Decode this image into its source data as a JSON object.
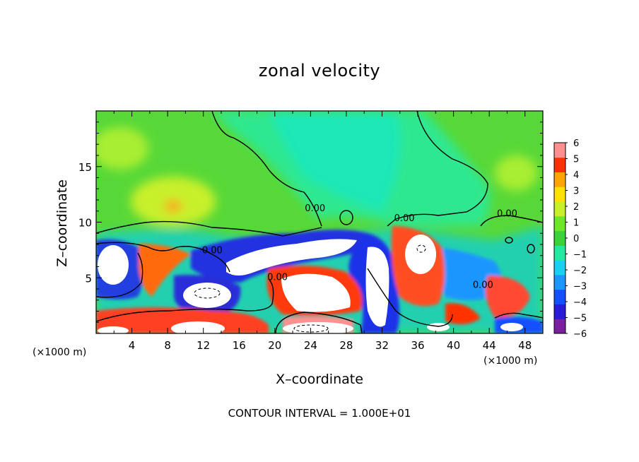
{
  "chart_data": {
    "type": "heatmap",
    "title": "zonal velocity",
    "xlabel": "X–coordinate",
    "ylabel": "Z–coordinate",
    "x_unit_note": "(×1000 m)",
    "z_unit_note": "(×1000 m)",
    "x_range": [
      0,
      50
    ],
    "y_range": [
      0,
      20
    ],
    "x_ticks": [
      4,
      8,
      12,
      16,
      20,
      24,
      28,
      32,
      36,
      40,
      44,
      48
    ],
    "x_tick_labels": [
      "4",
      "8",
      "12",
      "16",
      "20",
      "24",
      "28",
      "32",
      "36",
      "40",
      "44",
      "48"
    ],
    "y_ticks": [
      5,
      10,
      15
    ],
    "y_tick_labels": [
      "5",
      "10",
      "15"
    ],
    "colorbar": {
      "range": [
        -6,
        6
      ],
      "ticks": [
        6,
        5,
        4,
        3,
        2,
        1,
        0,
        -1,
        -2,
        -3,
        -4,
        -5,
        -6
      ],
      "tick_labels": [
        "6",
        "5",
        "4",
        "3",
        "2",
        "1",
        "0",
        "−1",
        "−2",
        "−3",
        "−4",
        "−5",
        "−6"
      ],
      "colors": [
        "#7a1fa0",
        "#2a1bd8",
        "#1450ff",
        "#1e96ff",
        "#18d0f0",
        "#22e8a0",
        "#3ad23a",
        "#6ee62a",
        "#c8f02a",
        "#ffe000",
        "#ffa500",
        "#ff3000",
        "#ff9090"
      ]
    },
    "contour_labels": [
      {
        "text": "0.00",
        "x": 24.5,
        "y": 11.0
      },
      {
        "text": "0.00",
        "x": 13.0,
        "y": 7.2
      },
      {
        "text": "0.00",
        "x": 20.3,
        "y": 4.8
      },
      {
        "text": "0.00",
        "x": 34.5,
        "y": 10.1
      },
      {
        "text": "0.00",
        "x": 46.0,
        "y": 10.5
      },
      {
        "text": "0.00",
        "x": 43.3,
        "y": 4.1
      }
    ],
    "contour_interval_text": "CONTOUR INTERVAL = 1.000E+01"
  }
}
